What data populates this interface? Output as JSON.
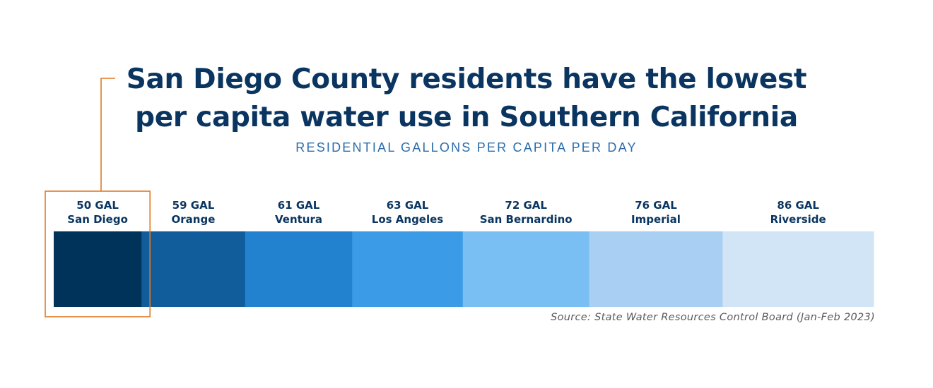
{
  "title": "San Diego County residents have the lowest per capita water use in Southern California",
  "subtitle": "RESIDENTIAL GALLONS PER CAPITA PER DAY",
  "source": "Source: State Water Resources Control Board (Jan-Feb 2023)",
  "chart_data": {
    "type": "bar",
    "orientation": "horizontal-stacked-segments",
    "categories": [
      "San Diego",
      "Orange",
      "Ventura",
      "Los Angeles",
      "San Bernardino",
      "Imperial",
      "Riverside"
    ],
    "values": [
      50,
      59,
      61,
      63,
      72,
      76,
      86
    ],
    "value_labels": [
      "50 GAL",
      "59 GAL",
      "61 GAL",
      "63 GAL",
      "72 GAL",
      "76 GAL",
      "86 GAL"
    ],
    "colors": [
      "#00335a",
      "#115c9a",
      "#2382d0",
      "#3c9be6",
      "#7abff3",
      "#a9cff2",
      "#d1e5f6"
    ],
    "highlight": "San Diego",
    "highlight_color": "#e07a24",
    "title": "San Diego County residents have the lowest per capita water use in Southern California",
    "subtitle": "RESIDENTIAL GALLONS PER CAPITA PER DAY"
  }
}
